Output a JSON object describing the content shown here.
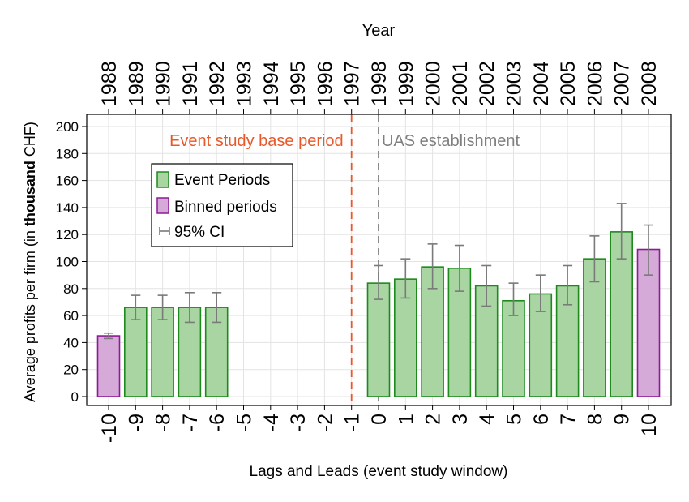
{
  "chart_data": {
    "type": "bar",
    "top_axis_title": "Year",
    "xlabel": "Lags and Leads (event study window)",
    "ylabel_prefix": "Average profits per firm (in ",
    "ylabel_bold": "thousand",
    "ylabel_suffix": " CHF)",
    "ylim": [
      0,
      200
    ],
    "yticks": [
      0,
      20,
      40,
      60,
      80,
      100,
      120,
      140,
      160,
      180,
      200
    ],
    "grid": true,
    "categories": [
      "-10",
      "-9",
      "-8",
      "-7",
      "-6",
      "-5",
      "-4",
      "-3",
      "-2",
      "-1",
      "0",
      "1",
      "2",
      "3",
      "4",
      "5",
      "6",
      "7",
      "8",
      "9",
      "10"
    ],
    "years": [
      "1988",
      "1989",
      "1990",
      "1991",
      "1992",
      "1993",
      "1994",
      "1995",
      "1996",
      "1997",
      "1998",
      "1999",
      "2000",
      "2001",
      "2002",
      "2003",
      "2004",
      "2005",
      "2006",
      "2007",
      "2008"
    ],
    "series": [
      {
        "name": "Event Periods",
        "color": "#a8d5a2",
        "edge": "#1e8a1e",
        "values": [
          null,
          66,
          66,
          66,
          66,
          null,
          null,
          null,
          null,
          null,
          84,
          87,
          96,
          95,
          82,
          71,
          76,
          82,
          102,
          122,
          null
        ],
        "ci_low": [
          null,
          57,
          57,
          55,
          55,
          null,
          null,
          null,
          null,
          null,
          72,
          73,
          80,
          78,
          67,
          60,
          63,
          68,
          85,
          102,
          null
        ],
        "ci_high": [
          null,
          75,
          75,
          77,
          77,
          null,
          null,
          null,
          null,
          null,
          97,
          102,
          113,
          112,
          97,
          84,
          90,
          97,
          119,
          143,
          null
        ]
      },
      {
        "name": "Binned periods",
        "color": "#d5a9d8",
        "edge": "#8e1a96",
        "values": [
          45,
          null,
          null,
          null,
          null,
          null,
          null,
          null,
          null,
          null,
          null,
          null,
          null,
          null,
          null,
          null,
          null,
          null,
          null,
          null,
          109
        ],
        "ci_low": [
          43,
          null,
          null,
          null,
          null,
          null,
          null,
          null,
          null,
          null,
          null,
          null,
          null,
          null,
          null,
          null,
          null,
          null,
          null,
          null,
          90
        ],
        "ci_high": [
          47,
          null,
          null,
          null,
          null,
          null,
          null,
          null,
          null,
          null,
          null,
          null,
          null,
          null,
          null,
          null,
          null,
          null,
          null,
          null,
          127
        ]
      }
    ],
    "ci_label": "95% CI",
    "ci_color": "#7a7a7a",
    "legend_position": "upper-left",
    "annotations": [
      {
        "text": "Event study base period",
        "at_category": "-1",
        "color": "#e8582a",
        "line_style": "dashed"
      },
      {
        "text": "UAS establishment",
        "at_category": "0",
        "color": "#7f7f7f",
        "line_style": "dashed"
      }
    ]
  }
}
